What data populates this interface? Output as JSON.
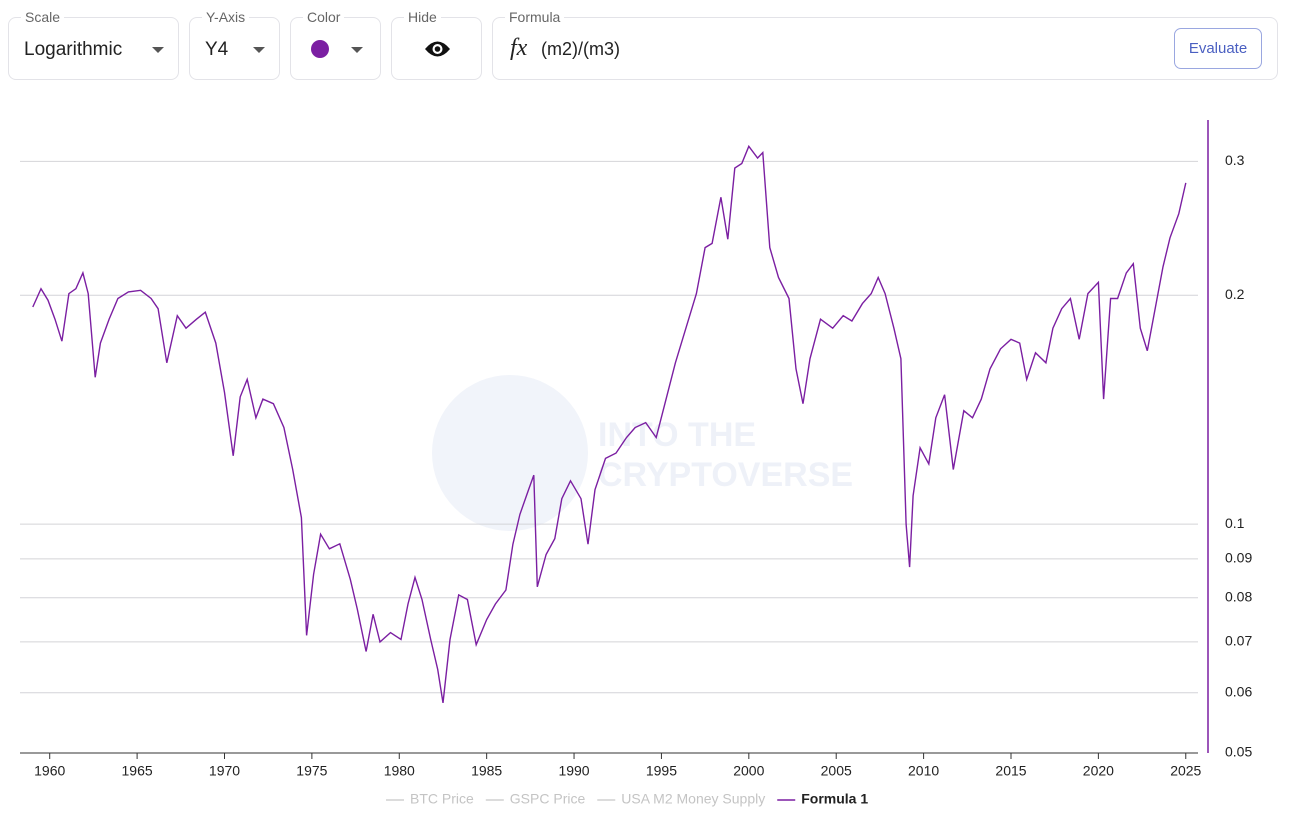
{
  "controls": {
    "scale": {
      "label": "Scale",
      "value": "Logarithmic"
    },
    "y_axis": {
      "label": "Y-Axis",
      "value": "Y4"
    },
    "color": {
      "label": "Color"
    },
    "hide": {
      "label": "Hide"
    },
    "formula": {
      "label": "Formula",
      "icon": "fx",
      "value": "(m2)/(m3)",
      "button": "Evaluate"
    }
  },
  "chart_data": {
    "type": "line",
    "watermark": [
      "INTO THE",
      "CRYPTOVERSE"
    ],
    "log_scale": true,
    "grid": true,
    "legend": "bottom",
    "hidden_series": [
      "BTC Price",
      "GSPC Price",
      "USA M2 Money Supply"
    ],
    "hidden_color": "#d0d0d0",
    "x": [
      1959.03,
      1959.5,
      1959.9,
      1960.3,
      1960.7,
      1961.1,
      1961.5,
      1961.9,
      1962.2,
      1962.6,
      1962.9,
      1963.4,
      1963.9,
      1964.5,
      1965.2,
      1965.8,
      1966.2,
      1966.7,
      1967.3,
      1967.8,
      1968.4,
      1968.9,
      1969.5,
      1970.0,
      1970.5,
      1970.9,
      1971.3,
      1971.8,
      1972.2,
      1972.8,
      1973.4,
      1973.9,
      1974.4,
      1974.7,
      1975.1,
      1975.5,
      1976.0,
      1976.6,
      1977.2,
      1977.6,
      1978.1,
      1978.5,
      1978.9,
      1979.5,
      1980.1,
      1980.5,
      1980.9,
      1981.3,
      1981.8,
      1982.2,
      1982.5,
      1982.9,
      1983.4,
      1983.9,
      1984.4,
      1985.0,
      1985.5,
      1986.1,
      1986.5,
      1986.9,
      1987.4,
      1987.7,
      1987.9,
      1988.4,
      1988.9,
      1989.3,
      1989.8,
      1990.4,
      1990.8,
      1991.2,
      1991.8,
      1992.4,
      1993.0,
      1993.5,
      1994.1,
      1994.7,
      1995.2,
      1995.8,
      1996.4,
      1997.0,
      1997.5,
      1997.9,
      1998.4,
      1998.8,
      1999.2,
      1999.6,
      2000.0,
      2000.5,
      2000.8,
      2001.2,
      2001.7,
      2002.3,
      2002.7,
      2003.1,
      2003.5,
      2004.1,
      2004.8,
      2005.4,
      2005.9,
      2006.5,
      2007.0,
      2007.4,
      2007.8,
      2008.3,
      2008.7,
      2009.0,
      2009.2,
      2009.4,
      2009.8,
      2010.3,
      2010.7,
      2011.2,
      2011.7,
      2012.3,
      2012.8,
      2013.3,
      2013.8,
      2014.4,
      2015.0,
      2015.5,
      2015.9,
      2016.4,
      2017.0,
      2017.4,
      2017.9,
      2018.4,
      2018.9,
      2019.4,
      2020.0,
      2020.3,
      2020.7,
      2021.1,
      2021.6,
      2022.0,
      2022.4,
      2022.8,
      2023.3,
      2023.7,
      2024.1,
      2024.6,
      2025.0
    ],
    "series": [
      {
        "name": "Formula 1",
        "color": "#7b1fa2",
        "values": [
          0.193,
          0.204,
          0.197,
          0.186,
          0.174,
          0.201,
          0.204,
          0.214,
          0.201,
          0.156,
          0.173,
          0.186,
          0.198,
          0.202,
          0.203,
          0.198,
          0.192,
          0.163,
          0.188,
          0.181,
          0.186,
          0.19,
          0.173,
          0.149,
          0.123,
          0.147,
          0.155,
          0.138,
          0.146,
          0.144,
          0.134,
          0.118,
          0.102,
          0.0714,
          0.0859,
          0.097,
          0.0928,
          0.0942,
          0.0846,
          0.0773,
          0.068,
          0.0761,
          0.07,
          0.072,
          0.0705,
          0.0785,
          0.0851,
          0.0796,
          0.0705,
          0.0644,
          0.0582,
          0.0705,
          0.0807,
          0.0796,
          0.0694,
          0.0749,
          0.0785,
          0.0819,
          0.0941,
          0.103,
          0.111,
          0.116,
          0.0827,
          0.0912,
          0.0957,
          0.108,
          0.114,
          0.108,
          0.0941,
          0.111,
          0.122,
          0.124,
          0.13,
          0.134,
          0.136,
          0.13,
          0.144,
          0.163,
          0.181,
          0.201,
          0.231,
          0.234,
          0.269,
          0.237,
          0.294,
          0.298,
          0.314,
          0.303,
          0.308,
          0.231,
          0.211,
          0.198,
          0.16,
          0.144,
          0.165,
          0.186,
          0.181,
          0.188,
          0.185,
          0.195,
          0.201,
          0.211,
          0.201,
          0.181,
          0.165,
          0.1,
          0.0878,
          0.109,
          0.126,
          0.12,
          0.138,
          0.148,
          0.118,
          0.141,
          0.138,
          0.146,
          0.16,
          0.17,
          0.175,
          0.173,
          0.155,
          0.168,
          0.163,
          0.181,
          0.192,
          0.198,
          0.175,
          0.201,
          0.208,
          0.146,
          0.198,
          0.198,
          0.214,
          0.22,
          0.181,
          0.169,
          0.195,
          0.218,
          0.238,
          0.256,
          0.281
        ]
      }
    ],
    "xlim": [
      1958.3,
      2025.7
    ],
    "xticks": [
      1960,
      1965,
      1970,
      1975,
      1980,
      1985,
      1990,
      1995,
      2000,
      2005,
      2010,
      2015,
      2020,
      2025
    ],
    "ylim": [
      0.05,
      0.34
    ],
    "yticks": [
      0.3,
      0.2,
      0.1,
      0.09,
      0.08,
      0.07,
      0.06,
      0.05
    ]
  }
}
